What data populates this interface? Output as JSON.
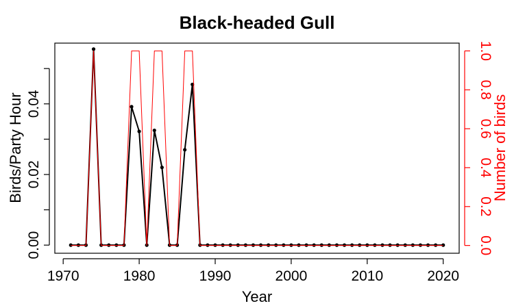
{
  "chart_data": {
    "type": "line",
    "title": "Black-headed Gull",
    "xlabel": "Year",
    "ylabel": "Birds/Party Hour",
    "y2label": "Number of birds",
    "xlim": [
      1968.9,
      2022.1
    ],
    "ylim": [
      -0.0023,
      0.0572
    ],
    "y2lim": [
      -0.04,
      1.04
    ],
    "x_ticks": [
      1970,
      1980,
      1990,
      2000,
      2010,
      2020
    ],
    "x_tick_labels": [
      "1970",
      "1980",
      "1990",
      "2000",
      "2010",
      "2020"
    ],
    "y_ticks": [
      0.0,
      0.01,
      0.02,
      0.03,
      0.04,
      0.05
    ],
    "y_tick_labels": [
      "0.00",
      "",
      "0.02",
      "",
      "0.04",
      ""
    ],
    "y2_ticks": [
      0.0,
      0.2,
      0.4,
      0.6,
      0.8,
      1.0
    ],
    "y2_tick_labels": [
      "0.0",
      "0.2",
      "0.4",
      "0.6",
      "0.8",
      "1.0"
    ],
    "colors": {
      "birds_per_party_hour": "#000000",
      "number_of_birds": "#ff0000"
    },
    "series": [
      {
        "axis": "left",
        "color": "#000000",
        "markers": true,
        "x": [
          1971,
          1972,
          1973,
          1974,
          1975,
          1976,
          1977,
          1978,
          1979,
          1980,
          1981,
          1982,
          1983,
          1984,
          1985,
          1986,
          1987,
          1988,
          1989,
          1990,
          1991,
          1992,
          1993,
          1994,
          1995,
          1996,
          1997,
          1998,
          1999,
          2000,
          2001,
          2002,
          2003,
          2004,
          2005,
          2006,
          2007,
          2008,
          2009,
          2010,
          2011,
          2012,
          2013,
          2014,
          2015,
          2016,
          2017,
          2018,
          2019,
          2020
        ],
        "values": [
          0,
          0,
          0,
          0.0555,
          0,
          0,
          0,
          0,
          0.0392,
          0.0322,
          0,
          0.0325,
          0.022,
          0,
          0,
          0.027,
          0.0455,
          0,
          0,
          0,
          0,
          0,
          0,
          0,
          0,
          0,
          0,
          0,
          0,
          0,
          0,
          0,
          0,
          0,
          0,
          0,
          0,
          0,
          0,
          0,
          0,
          0,
          0,
          0,
          0,
          0,
          0,
          0,
          0,
          0
        ]
      },
      {
        "axis": "right",
        "color": "#ff0000",
        "markers": false,
        "x": [
          1971,
          1972,
          1973,
          1974,
          1975,
          1976,
          1977,
          1978,
          1979,
          1980,
          1981,
          1982,
          1983,
          1984,
          1985,
          1986,
          1987,
          1988,
          1989,
          1990,
          1991,
          1992,
          1993,
          1994,
          1995,
          1996,
          1997,
          1998,
          1999,
          2000,
          2001,
          2002,
          2003,
          2004,
          2005,
          2006,
          2007,
          2008,
          2009,
          2010,
          2011,
          2012,
          2013,
          2014,
          2015,
          2016,
          2017,
          2018,
          2019,
          2020
        ],
        "values": [
          0,
          0,
          0,
          1,
          0,
          0,
          0,
          0,
          1,
          1,
          0,
          1,
          1,
          0,
          0,
          1,
          1,
          0,
          0,
          0,
          0,
          0,
          0,
          0,
          0,
          0,
          0,
          0,
          0,
          0,
          0,
          0,
          0,
          0,
          0,
          0,
          0,
          0,
          0,
          0,
          0,
          0,
          0,
          0,
          0,
          0,
          0,
          0,
          0,
          0
        ]
      }
    ]
  }
}
